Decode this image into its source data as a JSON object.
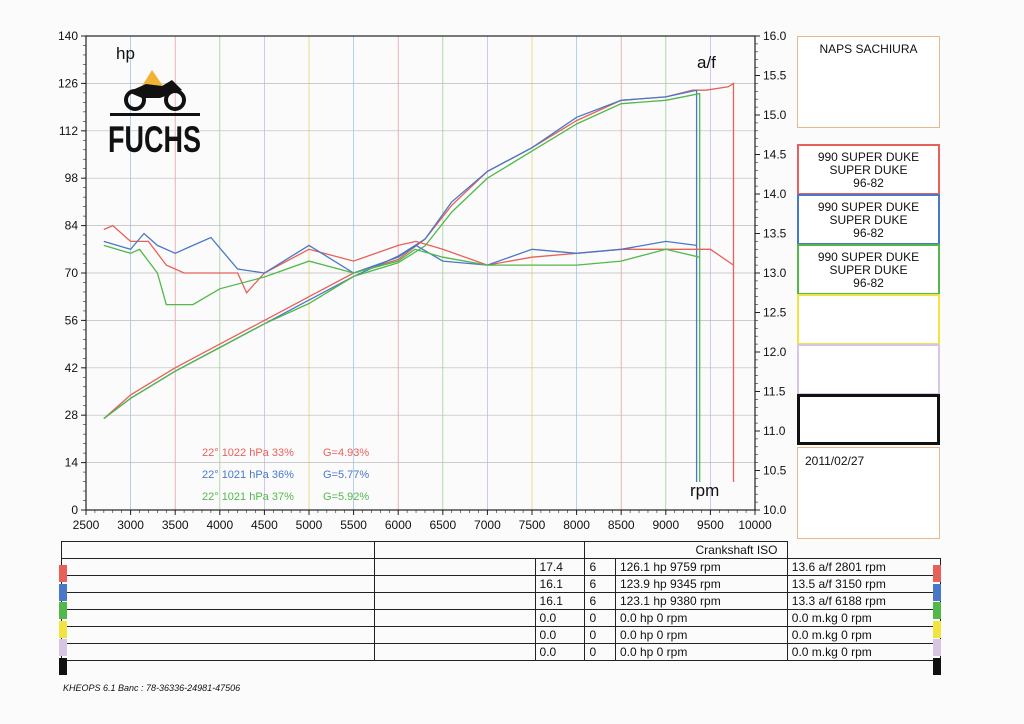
{
  "shop": "NAPS SACHIURA",
  "date": "2011/02/27",
  "footer": "KHEOPS 6.1  Banc : 78-36336-24981-47506",
  "logo_text": "FUCHS",
  "vehicles": [
    {
      "color": "#e8605a",
      "lines": [
        "990 SUPER DUKE",
        "SUPER DUKE",
        "96-82"
      ]
    },
    {
      "color": "#4a78c8",
      "lines": [
        "990 SUPER DUKE",
        "SUPER DUKE",
        "96-82"
      ]
    },
    {
      "color": "#52b84a",
      "lines": [
        "990 SUPER DUKE",
        "SUPER DUKE",
        "96-82"
      ]
    },
    {
      "color": "#f2e440",
      "lines": []
    },
    {
      "color": "#d6c6e4",
      "lines": []
    },
    {
      "color": "#111111",
      "lines": []
    }
  ],
  "table": {
    "header": "Crankshaft ISO",
    "rows": [
      {
        "color": "#e8605a",
        "c1": "17.4",
        "c2": "6",
        "c3": "126.1 hp 9759 rpm",
        "c4": "13.6 a/f 2801 rpm"
      },
      {
        "color": "#4a78c8",
        "c1": "16.1",
        "c2": "6",
        "c3": "123.9 hp 9345 rpm",
        "c4": "13.5 a/f 3150 rpm"
      },
      {
        "color": "#52b84a",
        "c1": "16.1",
        "c2": "6",
        "c3": "123.1 hp 9380 rpm",
        "c4": "13.3 a/f 6188 rpm"
      },
      {
        "color": "#f2e440",
        "c1": "0.0",
        "c2": "0",
        "c3": "0.0 hp 0 rpm",
        "c4": "0.0 m.kg 0 rpm"
      },
      {
        "color": "#d6c6e4",
        "c1": "0.0",
        "c2": "0",
        "c3": "0.0 hp 0 rpm",
        "c4": "0.0 m.kg 0 rpm"
      },
      {
        "color": "#111111",
        "c1": "0.0",
        "c2": "0",
        "c3": "0.0 hp 0 rpm",
        "c4": "0.0 m.kg 0 rpm"
      }
    ]
  },
  "chart_data": {
    "type": "line",
    "xlabel": "rpm",
    "ylabel": "hp",
    "y2label": "a/f",
    "xlim": [
      2500,
      10000
    ],
    "ylim": [
      0,
      140
    ],
    "y2lim": [
      10.0,
      16.0
    ],
    "x_ticks": [
      2500,
      3000,
      3500,
      4000,
      4500,
      5000,
      5500,
      6000,
      6500,
      7000,
      7500,
      8000,
      8500,
      9000,
      9500,
      10000
    ],
    "y_ticks": [
      0,
      14,
      28,
      42,
      56,
      70,
      84,
      98,
      112,
      126,
      140
    ],
    "y2_ticks": [
      "10.0",
      "10.5",
      "11.0",
      "11.5",
      "12.0",
      "12.5",
      "13.0",
      "13.5",
      "14.0",
      "14.5",
      "15.0",
      "15.5",
      "16.0"
    ],
    "grid": true,
    "conditions": [
      {
        "color": "#e8605a",
        "temp": "22°",
        "pressure": "1022 hPa",
        "humidity": "33%",
        "g": "G=4.93%"
      },
      {
        "color": "#4a78c8",
        "temp": "22°",
        "pressure": "1021 hPa",
        "humidity": "36%",
        "g": "G=5.77%"
      },
      {
        "color": "#52b84a",
        "temp": "22°",
        "pressure": "1021 hPa",
        "humidity": "37%",
        "g": "G=5.92%"
      }
    ],
    "series": [
      {
        "kind": "hp",
        "color": "#e8605a",
        "x": [
          2700,
          3000,
          3500,
          4000,
          4500,
          5000,
          5500,
          6000,
          6300,
          6600,
          7000,
          7500,
          8000,
          8500,
          9000,
          9300,
          9450,
          9700,
          9759
        ],
        "y": [
          27,
          34,
          42,
          49,
          56,
          63,
          70,
          74,
          80,
          90,
          100,
          107,
          115,
          121,
          122,
          124,
          124,
          125,
          126
        ]
      },
      {
        "kind": "hp",
        "color": "#4a78c8",
        "x": [
          2700,
          3000,
          3500,
          4000,
          4500,
          5000,
          5500,
          6000,
          6300,
          6600,
          7000,
          7500,
          8000,
          8500,
          9000,
          9345
        ],
        "y": [
          27,
          33,
          41,
          48,
          55,
          62,
          69,
          75,
          80,
          91,
          100,
          107,
          116,
          121,
          122,
          124
        ]
      },
      {
        "kind": "hp",
        "color": "#52b84a",
        "x": [
          2700,
          3000,
          3500,
          4000,
          4500,
          5000,
          5500,
          6000,
          6300,
          6600,
          7000,
          7500,
          8000,
          8500,
          9000,
          9380
        ],
        "y": [
          27,
          33,
          41,
          48,
          55,
          61,
          69,
          73,
          78,
          88,
          98,
          106,
          114,
          120,
          121,
          123
        ]
      },
      {
        "kind": "af",
        "color": "#e8605a",
        "x": [
          2700,
          2801,
          3000,
          3200,
          3400,
          3600,
          3800,
          4000,
          4200,
          4300,
          4500,
          5000,
          5500,
          6000,
          6200,
          6500,
          7000,
          7500,
          8000,
          8500,
          9000,
          9500,
          9759
        ],
        "y": [
          13.55,
          13.6,
          13.4,
          13.4,
          13.1,
          13.0,
          13.0,
          13.0,
          13.0,
          12.75,
          13.0,
          13.3,
          13.15,
          13.35,
          13.4,
          13.3,
          13.1,
          13.2,
          13.25,
          13.3,
          13.3,
          13.3,
          13.1
        ]
      },
      {
        "kind": "af",
        "color": "#4a78c8",
        "x": [
          2700,
          3000,
          3150,
          3300,
          3500,
          3700,
          3900,
          4200,
          4500,
          5000,
          5500,
          6000,
          6200,
          6500,
          7000,
          7500,
          8000,
          8500,
          9000,
          9345
        ],
        "y": [
          13.4,
          13.3,
          13.5,
          13.35,
          13.25,
          13.35,
          13.45,
          13.05,
          13.0,
          13.35,
          13.0,
          13.2,
          13.35,
          13.15,
          13.1,
          13.3,
          13.25,
          13.3,
          13.4,
          13.35
        ]
      },
      {
        "kind": "af",
        "color": "#52b84a",
        "x": [
          2700,
          3000,
          3100,
          3300,
          3400,
          3700,
          4000,
          4500,
          5000,
          5500,
          6000,
          6188,
          6500,
          7000,
          7500,
          8000,
          8500,
          9000,
          9380
        ],
        "y": [
          13.35,
          13.25,
          13.3,
          13.0,
          12.6,
          12.6,
          12.8,
          12.95,
          13.15,
          13.0,
          13.15,
          13.3,
          13.2,
          13.1,
          13.1,
          13.1,
          13.15,
          13.3,
          13.2
        ]
      }
    ]
  }
}
